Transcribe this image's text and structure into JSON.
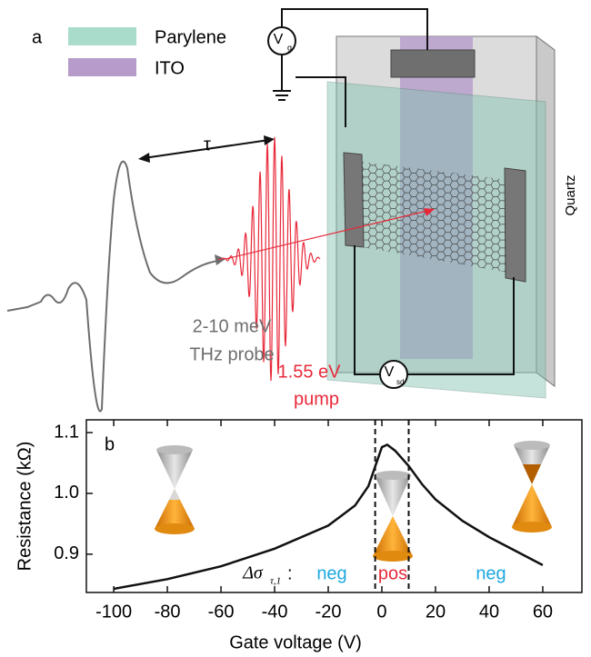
{
  "diagram": {
    "panel_label": "a",
    "legend": [
      {
        "label": "Parylene",
        "color": "#a9dccb"
      },
      {
        "label": "ITO",
        "color": "#b79ccb"
      }
    ],
    "gate": {
      "symbol": "V",
      "sub": "g"
    },
    "source_drain": {
      "symbol": "V",
      "sub": "sd"
    },
    "delay": "τ",
    "substrate": "Quartz",
    "probe": {
      "lines": [
        "2-10 meV",
        "THz probe"
      ],
      "color": "#6e6e6e"
    },
    "pump": {
      "lines": [
        "1.55 eV",
        "pump"
      ],
      "color": "#e8293a"
    }
  },
  "chart_data": {
    "type": "line",
    "panel_label": "b",
    "x_label": "Gate voltage (V)",
    "y_label": "Resistance (kΩ)",
    "x": [
      -100,
      -80,
      -60,
      -40,
      -20,
      -10,
      -5,
      0,
      2,
      5,
      10,
      15,
      20,
      30,
      40,
      50,
      60
    ],
    "values": [
      0.843,
      0.859,
      0.88,
      0.909,
      0.947,
      0.98,
      1.012,
      1.076,
      1.08,
      1.07,
      1.045,
      1.015,
      0.99,
      0.955,
      0.928,
      0.905,
      0.882
    ],
    "color": "#111111",
    "xlim": [
      -110.2,
      74.6
    ],
    "ylim": [
      0.837,
      1.121
    ],
    "xticks": [
      -100,
      -80,
      -60,
      -40,
      -20,
      0,
      20,
      40,
      60
    ],
    "yticks": [
      0.9,
      {
        "value": 1,
        "label": "1.0"
      },
      1.1
    ],
    "vlines": [
      -2.5,
      10
    ],
    "annotation": {
      "text": "Δσ",
      "sub": "τ,1",
      "suffix": ":"
    },
    "regions": [
      {
        "text": "neg",
        "color": "#1ea8e0"
      },
      {
        "text": "pos",
        "color": "#e8293a"
      },
      {
        "text": "neg",
        "color": "#1ea8e0"
      }
    ]
  }
}
